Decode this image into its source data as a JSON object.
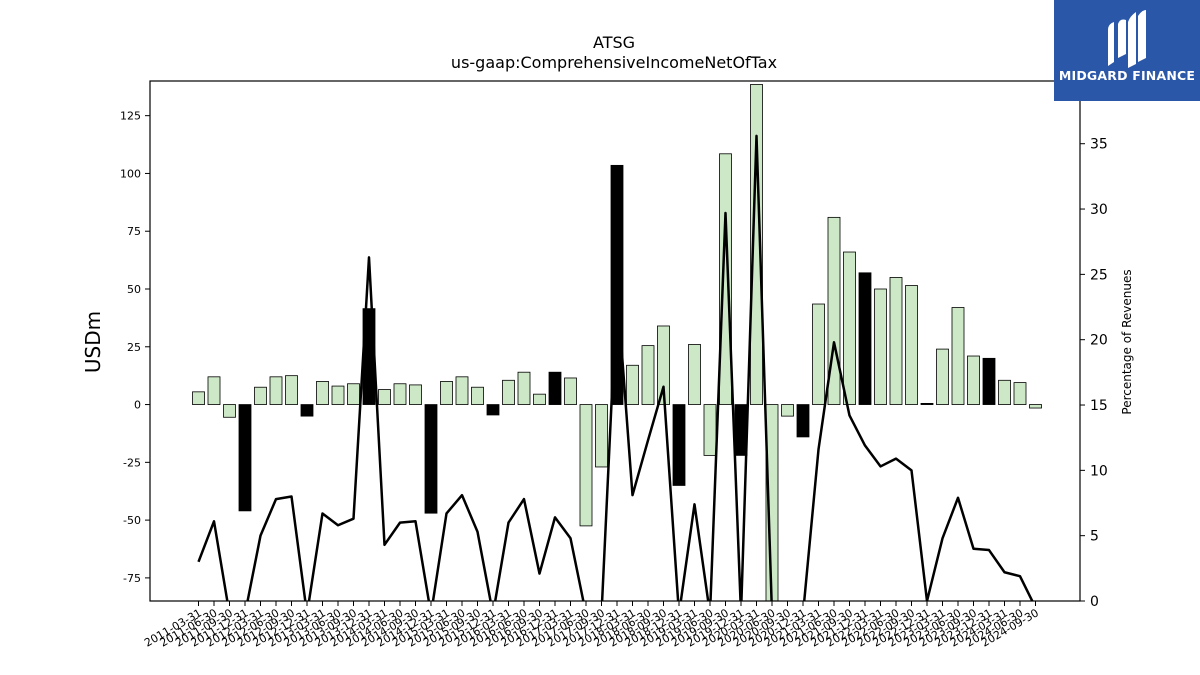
{
  "chart_data": {
    "type": "bar",
    "title": "ATSG",
    "subtitle": "us-gaap:ComprehensiveIncomeNetOfTax",
    "ylabel": "USDm",
    "y2label": "Percentage of Revenues",
    "ylim": [
      -85,
      140
    ],
    "y2lim": [
      0,
      39.8
    ],
    "yticks": [
      -75,
      -50,
      -25,
      0,
      25,
      50,
      75,
      100,
      125
    ],
    "y2ticks": [
      0,
      5,
      10,
      15,
      20,
      25,
      30,
      35
    ],
    "categories": [
      "2011-03-31",
      "2011-06-30",
      "2011-09-30",
      "2011-12-31",
      "2012-03-31",
      "2012-06-30",
      "2012-09-30",
      "2012-12-31",
      "2013-03-31",
      "2013-06-30",
      "2013-09-30",
      "2013-12-31",
      "2014-03-31",
      "2014-06-30",
      "2014-09-30",
      "2014-12-31",
      "2015-03-31",
      "2015-06-30",
      "2015-09-30",
      "2015-12-31",
      "2016-03-31",
      "2016-06-30",
      "2016-09-30",
      "2016-12-31",
      "2017-03-31",
      "2017-06-30",
      "2017-09-30",
      "2017-12-31",
      "2018-03-31",
      "2018-06-30",
      "2018-09-30",
      "2018-12-31",
      "2019-03-31",
      "2019-06-30",
      "2019-09-30",
      "2019-12-31",
      "2020-03-31",
      "2020-06-30",
      "2020-09-30",
      "2020-12-31",
      "2021-03-31",
      "2021-06-30",
      "2021-09-30",
      "2021-12-31",
      "2022-03-31",
      "2022-06-30",
      "2022-09-30",
      "2022-12-31",
      "2023-03-31",
      "2023-06-30",
      "2023-09-30",
      "2023-12-31",
      "2024-03-31",
      "2024-06-30",
      "2024-09-30"
    ],
    "series": [
      {
        "values": [
          5.5,
          12,
          -5.5,
          -46,
          7.5,
          12,
          12.5,
          -5,
          10,
          8,
          9,
          41.5,
          6.5,
          9,
          8.5,
          -47,
          10,
          12,
          7.5,
          -4.5,
          10.5,
          14,
          4.5,
          14,
          11.5,
          -52.5,
          -27,
          103.5,
          17,
          25.5,
          34,
          -35,
          26,
          -22,
          108.5,
          -22,
          138.5,
          -85,
          -5,
          -14,
          43.5,
          81,
          66,
          57,
          50,
          55,
          51.5,
          0.5,
          24,
          42,
          21,
          20,
          10.5,
          9.5,
          -1.5
        ],
        "colors": [
          "g",
          "g",
          "g",
          "k",
          "g",
          "g",
          "g",
          "k",
          "g",
          "g",
          "g",
          "k",
          "g",
          "g",
          "g",
          "k",
          "g",
          "g",
          "g",
          "k",
          "g",
          "g",
          "g",
          "k",
          "g",
          "g",
          "g",
          "k",
          "g",
          "g",
          "g",
          "k",
          "g",
          "g",
          "g",
          "k",
          "g",
          "g",
          "g",
          "k",
          "g",
          "g",
          "g",
          "k",
          "g",
          "g",
          "g",
          "k",
          "g",
          "g",
          "g",
          "k",
          "g",
          "g",
          "g"
        ]
      },
      {
        "axis": "right",
        "values": [
          3,
          6.1,
          -1,
          -1,
          5,
          7.8,
          8,
          -1,
          6.7,
          5.8,
          6.3,
          26.3,
          4.3,
          6,
          6.1,
          -1,
          6.7,
          8.1,
          5.3,
          -1,
          6,
          7.8,
          2.1,
          6.4,
          4.8,
          -1,
          -1,
          24,
          8.1,
          12.3,
          16.4,
          -1,
          7.4,
          -1,
          29.7,
          -1,
          35.6,
          -1,
          -1,
          -1,
          11.6,
          19.8,
          14.2,
          11.9,
          10.3,
          10.9,
          10,
          0,
          4.8,
          7.9,
          4,
          3.9,
          2.2,
          1.9,
          -0.5
        ]
      }
    ],
    "colors": {
      "positive": "#cde8c6",
      "dark": "#000000",
      "line": "#000000"
    }
  },
  "branding": {
    "logo_text": "MIDGARD FINANCE"
  }
}
